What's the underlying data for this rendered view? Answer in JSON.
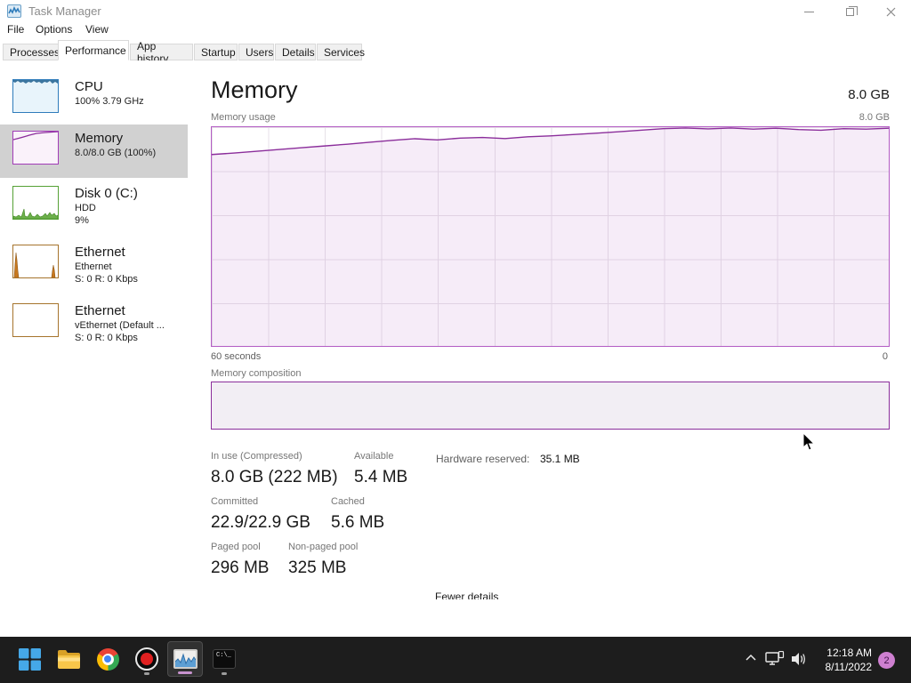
{
  "window": {
    "title": "Task Manager"
  },
  "menu": {
    "items": [
      {
        "label": "File"
      },
      {
        "label": "Options"
      },
      {
        "label": "View"
      }
    ]
  },
  "tabs": {
    "items": [
      {
        "label": "Processes",
        "active": false
      },
      {
        "label": "Performance",
        "active": true
      },
      {
        "label": "App history",
        "active": false
      },
      {
        "label": "Startup",
        "active": false
      },
      {
        "label": "Users",
        "active": false
      },
      {
        "label": "Details",
        "active": false
      },
      {
        "label": "Services",
        "active": false
      }
    ]
  },
  "sidebar": {
    "items": [
      {
        "title": "CPU",
        "sub1": "100% 3.79 GHz",
        "sub2": "",
        "selected": false,
        "color": "#2f7cbb"
      },
      {
        "title": "Memory",
        "sub1": "8.0/8.0 GB (100%)",
        "sub2": "",
        "selected": true,
        "color": "#a13cb7"
      },
      {
        "title": "Disk 0 (C:)",
        "sub1": "HDD",
        "sub2": "9%",
        "selected": false,
        "color": "#55a135"
      },
      {
        "title": "Ethernet",
        "sub1": "Ethernet",
        "sub2": "S: 0 R: 0 Kbps",
        "selected": false,
        "color": "#a6742c"
      },
      {
        "title": "Ethernet",
        "sub1": "vEthernet (Default ...",
        "sub2": "S: 0 R: 0 Kbps",
        "selected": false,
        "color": "#a6742c"
      }
    ]
  },
  "main": {
    "title": "Memory",
    "total": "8.0 GB",
    "usage_label": "Memory usage",
    "usage_max": "8.0 GB",
    "x_left": "60 seconds",
    "x_right": "0",
    "composition_label": "Memory composition",
    "stats": {
      "in_use_label": "In use (Compressed)",
      "in_use": "8.0 GB (222 MB)",
      "available_label": "Available",
      "available": "5.4 MB",
      "hw_label": "Hardware reserved:",
      "hw_value": "35.1 MB",
      "committed_label": "Committed",
      "committed": "22.9/22.9 GB",
      "cached_label": "Cached",
      "cached": "5.6 MB",
      "paged_label": "Paged pool",
      "paged": "296 MB",
      "nonpaged_label": "Non-paged pool",
      "nonpaged": "325 MB"
    },
    "fewer_details": "Fewer details"
  },
  "chart_data": [
    {
      "type": "area",
      "title": "Memory usage",
      "xlabel_left": "60 seconds",
      "xlabel_right": "0",
      "ylim_percent": [
        0,
        100
      ],
      "ylim_gb": [
        0,
        8
      ],
      "ytop_label": "8.0 GB",
      "grid": true,
      "series": [
        {
          "name": "Memory usage (% of 8.0 GB)",
          "values": [
            87.5,
            88.2,
            89.0,
            89.8,
            90.6,
            91.4,
            92.2,
            93.1,
            94.0,
            94.7,
            94.2,
            95.0,
            95.3,
            94.8,
            95.6,
            96.0,
            96.6,
            97.2,
            97.9,
            98.6,
            99.3,
            99.6,
            99.2,
            99.6,
            99.1,
            99.5,
            98.9,
            98.6,
            99.3,
            99.1,
            99.5
          ]
        }
      ],
      "line_color": "#8b2e9b",
      "fill_color": "rgba(167,70,190,0.10)"
    },
    {
      "type": "bar",
      "title": "Memory composition",
      "segments": [
        {
          "name": "In use",
          "percent": 100
        }
      ]
    }
  ],
  "taskbar": {
    "icons": [
      {
        "name": "start"
      },
      {
        "name": "file-explorer"
      },
      {
        "name": "chrome"
      },
      {
        "name": "screen-recorder"
      },
      {
        "name": "task-manager",
        "active": true
      },
      {
        "name": "terminal"
      }
    ],
    "terminal_prompt": "C:\\_",
    "time": "12:18 AM",
    "date": "8/11/2022",
    "badge_count": "2"
  },
  "colors": {
    "memory_accent": "#a13cb7",
    "memory_border": "#b35cc4",
    "memory_line": "#8b2e9b",
    "cpu_accent": "#2f7cbb",
    "disk_accent": "#55a135",
    "ethernet_accent": "#a6742c",
    "selected_bg": "#d1d1d1",
    "taskbar_bg": "#1d1d1d",
    "badge_bg": "#ce7fd0"
  }
}
